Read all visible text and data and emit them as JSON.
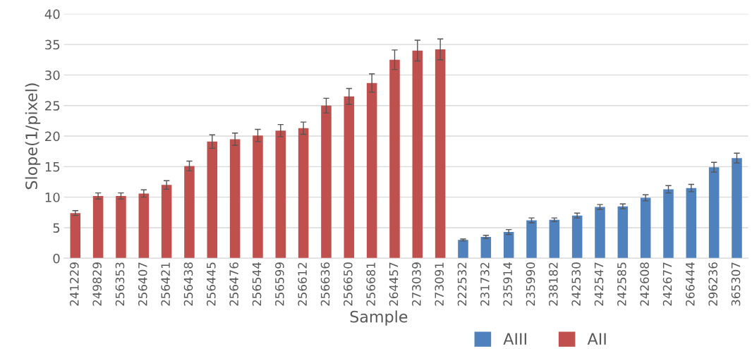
{
  "chart_data": {
    "type": "bar",
    "xlabel": "Sample",
    "ylabel": "Slope(1/pixel)",
    "categories": [
      "241229",
      "249829",
      "256353",
      "256407",
      "256421",
      "256438",
      "256445",
      "256476",
      "256544",
      "256599",
      "256612",
      "256636",
      "256650",
      "256681",
      "264457",
      "273039",
      "273091",
      "222532",
      "231732",
      "235914",
      "235990",
      "238182",
      "242530",
      "242547",
      "242585",
      "242608",
      "242677",
      "266444",
      "296236",
      "365307"
    ],
    "series": [
      {
        "name": "AIII",
        "color": "#4f81bd",
        "values": [
          null,
          null,
          null,
          null,
          null,
          null,
          null,
          null,
          null,
          null,
          null,
          null,
          null,
          null,
          null,
          null,
          null,
          3.0,
          3.5,
          4.3,
          6.2,
          6.3,
          7.0,
          8.4,
          8.5,
          9.9,
          11.3,
          11.5,
          14.9,
          16.4
        ],
        "errors": [
          null,
          null,
          null,
          null,
          null,
          null,
          null,
          null,
          null,
          null,
          null,
          null,
          null,
          null,
          null,
          null,
          null,
          0.15,
          0.25,
          0.4,
          0.4,
          0.3,
          0.4,
          0.4,
          0.4,
          0.5,
          0.6,
          0.6,
          0.8,
          0.8
        ]
      },
      {
        "name": "AII",
        "color": "#c0504d",
        "values": [
          7.4,
          10.2,
          10.2,
          10.6,
          12.0,
          15.1,
          19.1,
          19.5,
          20.1,
          20.9,
          21.3,
          25.0,
          26.5,
          28.7,
          32.5,
          34.0,
          34.2,
          null,
          null,
          null,
          null,
          null,
          null,
          null,
          null,
          null,
          null,
          null,
          null,
          null
        ],
        "errors": [
          0.4,
          0.5,
          0.5,
          0.6,
          0.7,
          0.8,
          1.1,
          1.0,
          1.0,
          1.0,
          1.0,
          1.2,
          1.3,
          1.5,
          1.6,
          1.7,
          1.7,
          null,
          null,
          null,
          null,
          null,
          null,
          null,
          null,
          null,
          null,
          null,
          null,
          null
        ]
      }
    ],
    "ylim": [
      0,
      40
    ],
    "yticks": [
      0,
      5,
      10,
      15,
      20,
      25,
      30,
      35,
      40
    ],
    "grid": "y",
    "legend": "bottom"
  }
}
